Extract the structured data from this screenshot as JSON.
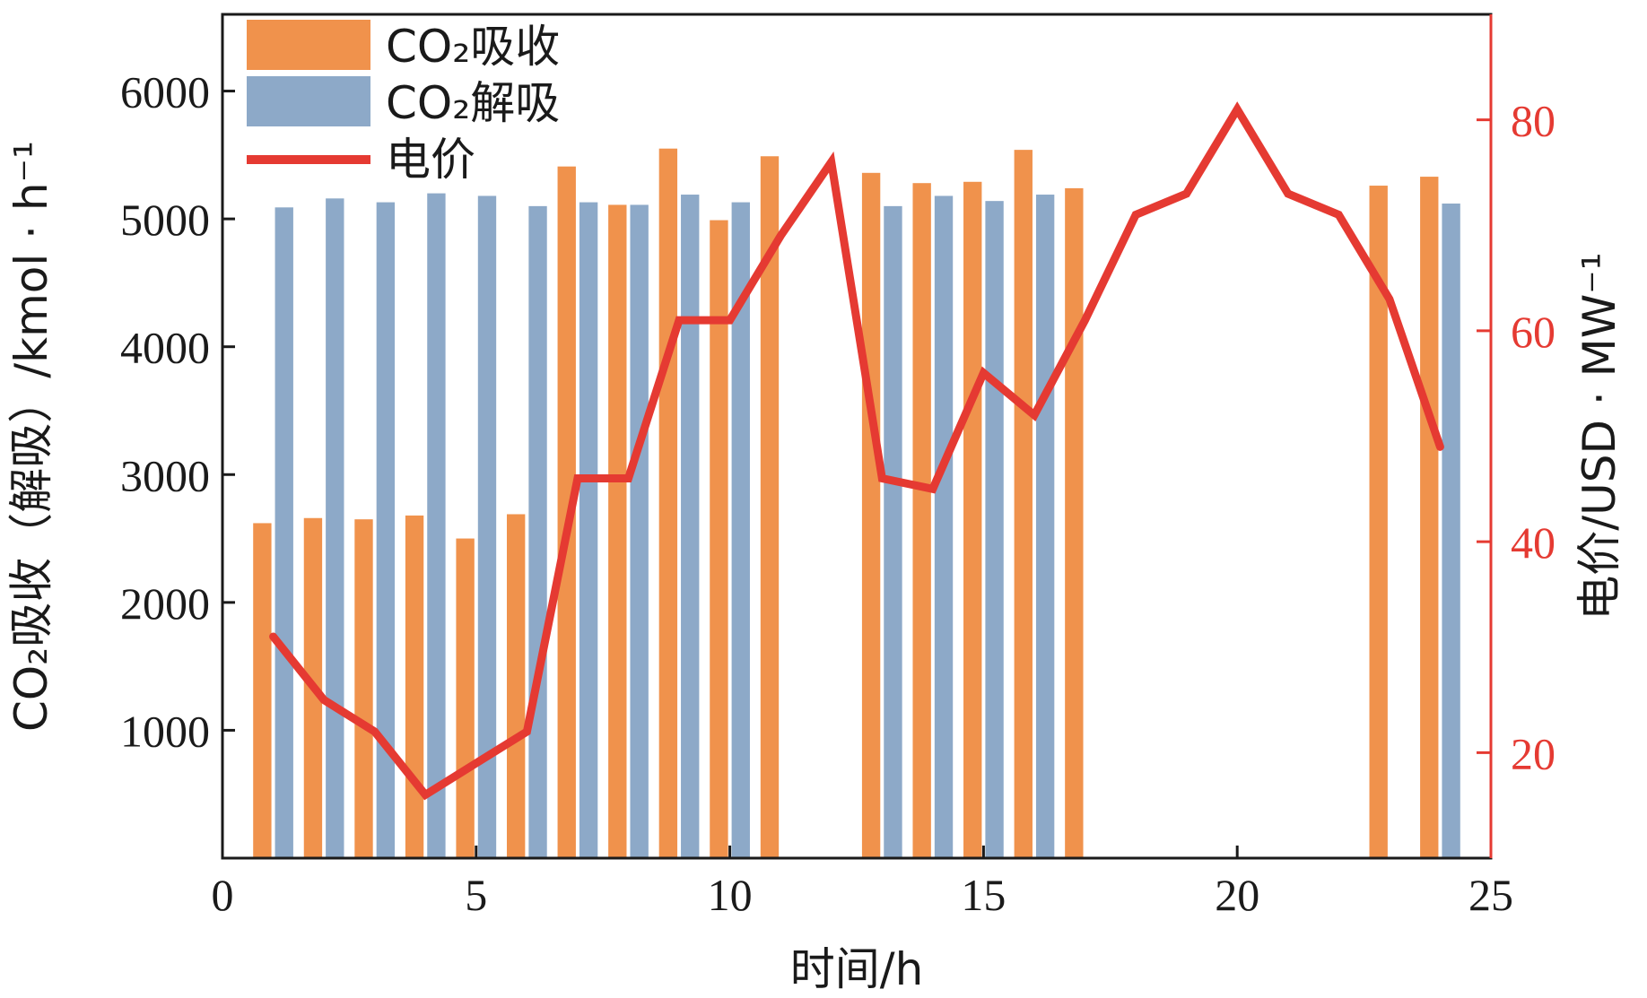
{
  "chart_data": {
    "type": "bar",
    "x": [
      1,
      2,
      3,
      4,
      5,
      6,
      7,
      8,
      9,
      10,
      11,
      12,
      13,
      14,
      15,
      16,
      17,
      18,
      19,
      20,
      21,
      22,
      23,
      24
    ],
    "series": [
      {
        "name": "CO₂吸收",
        "type": "bar",
        "axis": "left",
        "color": "#F0924C",
        "values": [
          2620,
          2660,
          2650,
          2680,
          2500,
          2690,
          5410,
          5110,
          5550,
          4990,
          5490,
          0,
          5360,
          5280,
          5290,
          5540,
          5240,
          0,
          0,
          0,
          0,
          0,
          5260,
          5330
        ]
      },
      {
        "name": "CO₂解吸",
        "type": "bar",
        "axis": "left",
        "color": "#8DA9C8",
        "values": [
          5090,
          5160,
          5130,
          5200,
          5180,
          5100,
          5130,
          5110,
          5190,
          5130,
          0,
          0,
          5100,
          5180,
          5140,
          5190,
          0,
          0,
          0,
          0,
          0,
          0,
          0,
          5120
        ]
      },
      {
        "name": "电价",
        "type": "line",
        "axis": "right",
        "color": "#E53A32",
        "values": [
          31,
          25,
          22,
          16,
          19,
          22,
          46,
          46,
          61,
          61,
          69,
          76,
          46,
          45,
          56,
          52,
          61,
          71,
          73,
          81,
          73,
          71,
          63,
          49
        ]
      }
    ],
    "xlabel": "时间/h",
    "ylabel": "CO₂吸收（解吸）/kmol · h⁻¹",
    "y2label": "电价/USD · MW⁻¹",
    "xlim": [
      0,
      25
    ],
    "ylim": [
      0,
      6600
    ],
    "y2lim": [
      10,
      90
    ],
    "xticks": [
      "0",
      "5",
      "10",
      "15",
      "20",
      "25"
    ],
    "yticks": [
      "1000",
      "2000",
      "3000",
      "4000",
      "5000",
      "6000"
    ],
    "y2ticks": [
      "20",
      "40",
      "60",
      "80"
    ],
    "grid": false,
    "legend_position": "top-left",
    "right_axis_color": "#E53A32"
  }
}
